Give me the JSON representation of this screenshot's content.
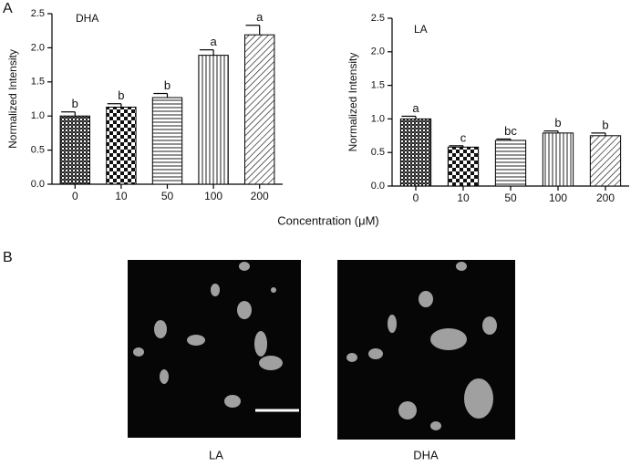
{
  "panel_labels": [
    "A",
    "B"
  ],
  "shared_x_label": "Concentration (μM)",
  "chart_data": [
    {
      "type": "bar",
      "title": "DHA",
      "y_label": "Normalized Intensity",
      "categories": [
        "0",
        "10",
        "50",
        "100",
        "200"
      ],
      "values": [
        1.0,
        1.13,
        1.27,
        1.89,
        2.19
      ],
      "errors": [
        0.06,
        0.05,
        0.06,
        0.08,
        0.14
      ],
      "annotations": [
        "b",
        "b",
        "b",
        "a",
        "a"
      ],
      "ylim": [
        0,
        2.5
      ],
      "yticks": [
        {
          "value": 0,
          "label": "0.0"
        },
        {
          "value": 0.5,
          "label": "0.5"
        },
        {
          "value": 1,
          "label": "1.0"
        },
        {
          "value": 1.5,
          "label": "1.5"
        },
        {
          "value": 2,
          "label": "2.0"
        },
        {
          "value": 2.5,
          "label": "2.5"
        }
      ]
    },
    {
      "type": "bar",
      "title": "LA",
      "y_label": "Normalized Intensity",
      "categories": [
        "0",
        "10",
        "50",
        "100",
        "200"
      ],
      "values": [
        1.0,
        0.58,
        0.68,
        0.79,
        0.75
      ],
      "errors": [
        0.04,
        0.02,
        0.02,
        0.03,
        0.04
      ],
      "annotations": [
        "a",
        "c",
        "bc",
        "b",
        "b"
      ],
      "ylim": [
        0,
        2.5
      ],
      "yticks": [
        {
          "value": 0,
          "label": "0.0"
        },
        {
          "value": 0.5,
          "label": "0.5"
        },
        {
          "value": 1,
          "label": "1.0"
        },
        {
          "value": 1.5,
          "label": "1.5"
        },
        {
          "value": 2,
          "label": "2.0"
        },
        {
          "value": 2.5,
          "label": "2.5"
        }
      ]
    }
  ],
  "images": [
    {
      "caption": "LA"
    },
    {
      "caption": "DHA"
    }
  ]
}
